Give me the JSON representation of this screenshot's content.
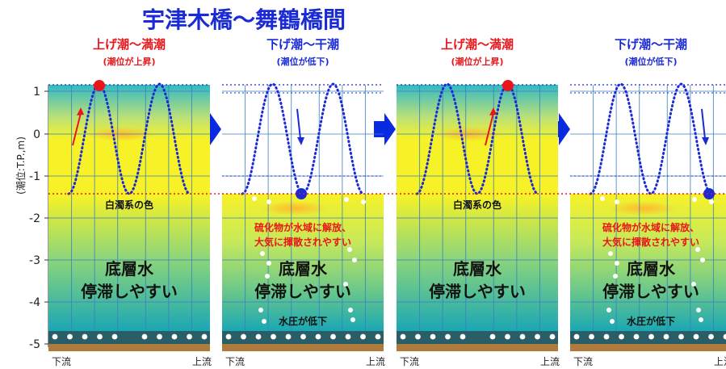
{
  "title": "宇津木橋〜舞鶴橋間",
  "y_axis": {
    "label": "(潮位:T.P.,m)",
    "ticks": [
      "1",
      "0",
      "-1",
      "-2",
      "-3",
      "-4",
      "-5"
    ]
  },
  "panels": [
    {
      "title": "上げ潮〜満潮",
      "subtitle": "(潮位が上昇)",
      "phase": "rising",
      "title_color": "#e8161b",
      "water_label": "白濁系の色",
      "note_lines": [],
      "bottom_lines": [
        "底層水",
        "停滞しやすい"
      ],
      "pressure_label": "",
      "x_left": "下流",
      "x_right": "上流"
    },
    {
      "title": "下げ潮〜干潮",
      "subtitle": "(潮位が低下)",
      "phase": "falling",
      "title_color": "#1a2bd6",
      "water_label": "",
      "note_lines": [
        "硫化物が水域に解放、",
        "大気に揮散されやすい"
      ],
      "bottom_lines": [
        "底層水",
        "停滞しやすい"
      ],
      "pressure_label": "水圧が低下",
      "x_left": "下流",
      "x_right": "上流"
    },
    {
      "title": "上げ潮〜満潮",
      "subtitle": "(潮位が上昇)",
      "phase": "rising",
      "title_color": "#e8161b",
      "water_label": "白濁系の色",
      "note_lines": [],
      "bottom_lines": [
        "底層水",
        "停滞しやすい"
      ],
      "pressure_label": "",
      "x_left": "下流",
      "x_right": "上流"
    },
    {
      "title": "下げ潮〜干潮",
      "subtitle": "(潮位が低下)",
      "phase": "falling",
      "title_color": "#1a2bd6",
      "water_label": "",
      "note_lines": [
        "硫化物が水域に解放、",
        "大気に揮散されやすい"
      ],
      "bottom_lines": [
        "底層水",
        "停滞しやすい"
      ],
      "pressure_label": "水圧が低下",
      "x_left": "下流",
      "x_right": "上流"
    }
  ],
  "colors": {
    "title": "#1a2bd6",
    "wave": "#1a2bd6",
    "high_tide_dot": "#e8161b",
    "low_tide_dot": "#1a2bd6",
    "red_line": "#e8161b",
    "sediment": "#2a5e66",
    "mud": "#b07a3c",
    "arrow": "#0a2ae0"
  }
}
